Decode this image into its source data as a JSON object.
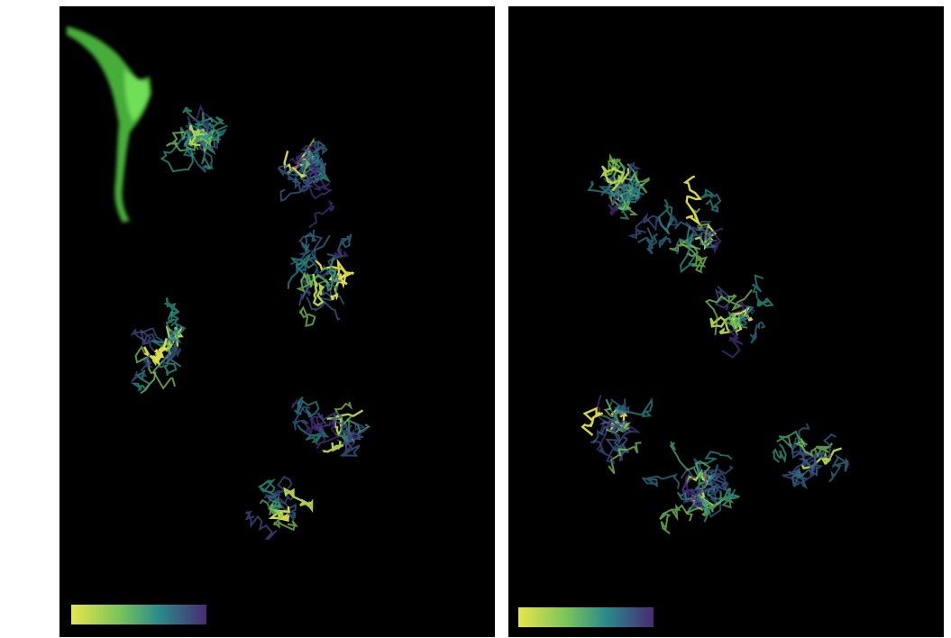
{
  "figure": {
    "colormap": [
      "#fde725",
      "#b5de2b",
      "#6ece58",
      "#35b779",
      "#1f9e89",
      "#26828e",
      "#31688e",
      "#3e4989",
      "#482878",
      "#440154"
    ],
    "background_color": "#000000",
    "panels": [
      {
        "id": "left",
        "description_kind": "trajectory-tracks-with-cell-inset",
        "inset_color": "#5ad84a",
        "colorbar": {
          "direction": "yellow-to-purple"
        }
      },
      {
        "id": "right",
        "description_kind": "trajectory-tracks",
        "colorbar": {
          "direction": "yellow-to-purple"
        }
      }
    ]
  }
}
